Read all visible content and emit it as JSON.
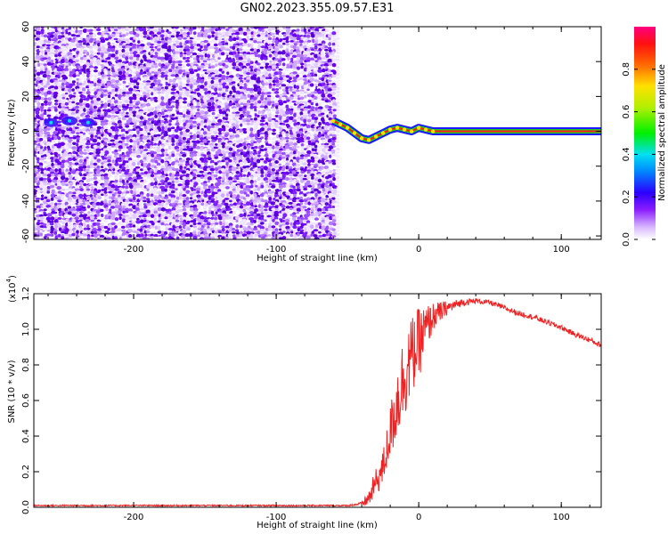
{
  "title": "GN02.2023.355.09.57.E31",
  "colors": {
    "snr_line": "#ee2222",
    "spectrogram_noise": "#7a22ee",
    "dispersion_line_core": "#ff1a1a",
    "dispersion_line_edge": "#22cc22",
    "dispersion_line_outer": "#1a1aff"
  },
  "chart_data": [
    {
      "type": "heatmap",
      "name": "spectrogram",
      "title": "",
      "xlabel": "Height of straight line (km)",
      "ylabel": "Frequency (Hz)",
      "xlim": [
        -270,
        128
      ],
      "ylim": [
        -62,
        60
      ],
      "x_ticks": [
        -200,
        -100,
        0,
        100
      ],
      "y_ticks": [
        60,
        40,
        20,
        0,
        -20,
        -40,
        -60
      ],
      "noise_region_x": [
        -270,
        -58
      ],
      "signal_track": {
        "x": [
          -60,
          -55,
          -50,
          -45,
          -40,
          -35,
          -30,
          -25,
          -20,
          -15,
          -10,
          -5,
          0,
          5,
          10,
          128
        ],
        "y": [
          6,
          4,
          2,
          -1,
          -4,
          -5,
          -3,
          -1,
          1,
          2,
          1,
          0,
          2,
          1,
          0,
          0
        ]
      },
      "colorbar": {
        "label": "Normalized spectral amplitude",
        "range": [
          0.0,
          1.0
        ],
        "ticks": [
          0.0,
          0.2,
          0.4,
          0.6,
          0.8
        ],
        "tick_labels": [
          "0.0",
          "0.2",
          "0.4",
          "0.6",
          "0.8"
        ]
      }
    },
    {
      "type": "line",
      "name": "snr",
      "title": "",
      "xlabel": "Height of straight line (km)",
      "ylabel": "SNR (10 * v/v)",
      "yscale_label": "(x10",
      "yscale_exp": "4",
      "yscale_close": ")",
      "xlim": [
        -270,
        128
      ],
      "ylim": [
        0.0,
        1.2
      ],
      "x_ticks": [
        -200,
        -100,
        0,
        100
      ],
      "y_ticks": [
        0.0,
        0.2,
        0.4,
        0.6,
        0.8,
        1.0,
        1.2
      ],
      "y_tick_labels": [
        "0.0",
        "0.2",
        "0.4",
        "0.6",
        "0.8",
        "1.0",
        "1.2"
      ],
      "series": [
        {
          "x": [
            -270,
            -200,
            -100,
            -50,
            -40,
            -35,
            -30,
            -25,
            -20,
            -15,
            -10,
            -5,
            0,
            5,
            10,
            20,
            30,
            40,
            50,
            60,
            70,
            80,
            90,
            100,
            110,
            120,
            128
          ],
          "y": [
            0.01,
            0.01,
            0.01,
            0.01,
            0.02,
            0.05,
            0.14,
            0.22,
            0.42,
            0.6,
            0.75,
            0.85,
            0.92,
            1.0,
            1.07,
            1.12,
            1.15,
            1.16,
            1.15,
            1.12,
            1.09,
            1.07,
            1.04,
            1.01,
            0.97,
            0.94,
            0.91
          ],
          "noise_amplitude": [
            0.004,
            0.004,
            0.004,
            0.004,
            0.01,
            0.05,
            0.08,
            0.1,
            0.15,
            0.22,
            0.25,
            0.22,
            0.2,
            0.14,
            0.08,
            0.04,
            0.02,
            0.015,
            0.015,
            0.015,
            0.015,
            0.015,
            0.015,
            0.015,
            0.015,
            0.015,
            0.015
          ]
        }
      ]
    }
  ]
}
